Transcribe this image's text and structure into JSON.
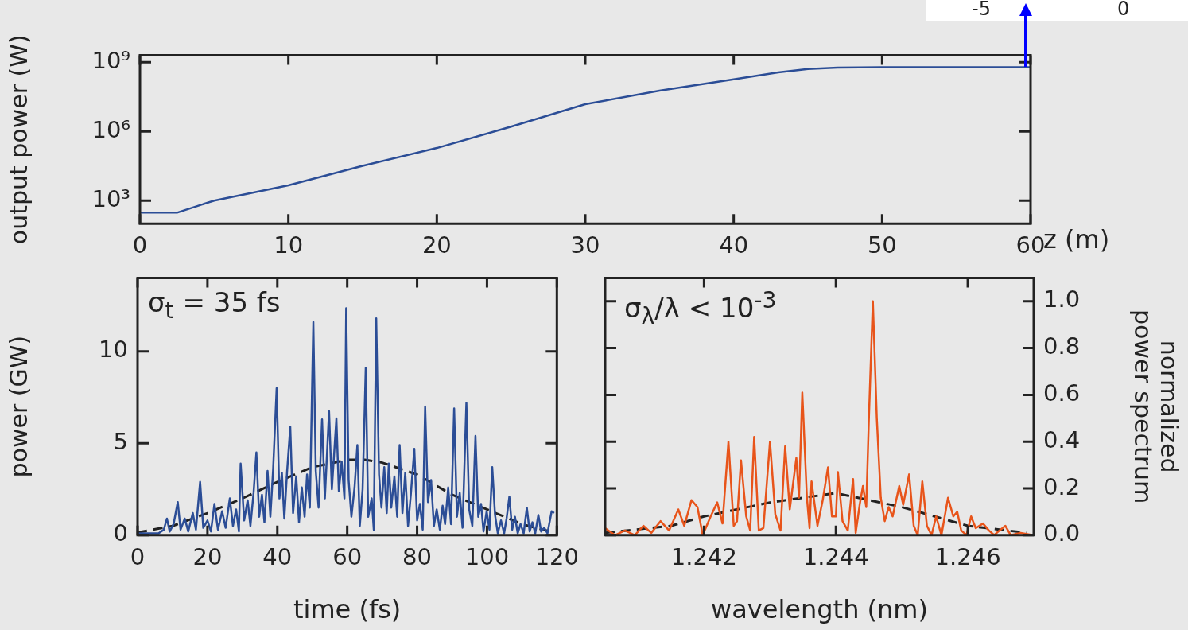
{
  "chart_data": [
    {
      "type": "line",
      "ylabel": "output power (W)",
      "xlabel": "z (m)",
      "log": true,
      "marker": "none",
      "xlim": [
        0,
        60
      ],
      "xticks": [
        0,
        10,
        20,
        30,
        40,
        50,
        60
      ],
      "ylim": [
        100,
        2000000000
      ],
      "yticks": [
        {
          "value": 1000,
          "label": "10³"
        },
        {
          "value": 1000000,
          "label": "10⁶"
        },
        {
          "value": 1000000000,
          "label": "10⁹"
        }
      ],
      "x": [
        0,
        2.5,
        5,
        10,
        15,
        20,
        25,
        30,
        35,
        40,
        43,
        45,
        47,
        50,
        55,
        60
      ],
      "series": [
        {
          "color": "#2b4d96",
          "values": [
            300,
            300,
            1000,
            4600,
            32000,
            190000,
            1600000,
            15000000,
            58000000,
            180000000,
            360000000,
            500000000,
            580000000,
            600000000,
            600000000,
            600000000
          ]
        }
      ],
      "annotations": [
        "-5",
        "0"
      ]
    },
    {
      "type": "line",
      "xlabel": "time (fs)",
      "ylabel": "power (GW)",
      "marker": "none",
      "xlim": [
        0,
        120
      ],
      "xticks": [
        0,
        20,
        40,
        60,
        80,
        100,
        120
      ],
      "ylim": [
        0,
        14
      ],
      "yticks": [
        0,
        5,
        10
      ],
      "annotations": [
        "σ$_{t}$ = 35 fs"
      ],
      "series": [
        {
          "color": "#2b4d96",
          "x": [
            0,
            3,
            6,
            7.5,
            8.4,
            9.2,
            10.3,
            11.5,
            12.3,
            13.5,
            14.5,
            15.8,
            16.7,
            17.9,
            18.8,
            20,
            21,
            22,
            23,
            24.2,
            25.2,
            26.4,
            27.3,
            28.2,
            29,
            29.5,
            30.5,
            31.5,
            32.3,
            33.2,
            34,
            34.8,
            35.6,
            36.3,
            37.2,
            38,
            38.8,
            39.8,
            40.6,
            41.3,
            42,
            42.8,
            43.7,
            44.5,
            45.4,
            46.2,
            47,
            47.8,
            48.5,
            49.3,
            50.3,
            51,
            51.8,
            52.8,
            53.6,
            54.8,
            55.6,
            56.9,
            57.6,
            58.4,
            59.2,
            59.7,
            60.4,
            61.2,
            62.1,
            62.9,
            63.6,
            64.4,
            65.3,
            66,
            67,
            67.6,
            68.3,
            69.1,
            69.8,
            70.6,
            71.3,
            71.9,
            72.6,
            73.5,
            74.3,
            75,
            75.8,
            76.6,
            77.4,
            78.2,
            79.2,
            80,
            80.8,
            81.6,
            82.3,
            83.1,
            84,
            84.8,
            85.6,
            86.5,
            87.3,
            88,
            88.9,
            89.7,
            90.6,
            91.4,
            92.2,
            93,
            94.1,
            94.9,
            95.8,
            96.7,
            97.5,
            98.3,
            99,
            99.9,
            100.7,
            101.5,
            102.3,
            103.1,
            104,
            104.9,
            105.6,
            106.4,
            107.2,
            108,
            108.8,
            109.6,
            110.5,
            111.4,
            112.2,
            113,
            113.8,
            114.7,
            115.5,
            116.4,
            117.3,
            118.5,
            119.2
          ],
          "values": [
            0.1,
            0.1,
            0.1,
            0.3,
            0.9,
            0.2,
            0.6,
            1.8,
            0.3,
            0.9,
            0.2,
            1.2,
            0.3,
            2.9,
            0.4,
            0.8,
            0.2,
            1.7,
            0.3,
            1.3,
            0.4,
            2.0,
            0.5,
            1.4,
            0.2,
            3.9,
            0.8,
            1.9,
            0.5,
            2.3,
            4.5,
            1.0,
            2.2,
            0.7,
            3.5,
            1.0,
            3.6,
            8.0,
            2.0,
            3.4,
            0.9,
            3.5,
            5.9,
            1.2,
            3.2,
            0.7,
            2.6,
            1.0,
            3.3,
            1.5,
            11.6,
            3.5,
            1.5,
            6.3,
            2.0,
            6.75,
            2.5,
            6.35,
            2.4,
            4.0,
            2.0,
            12.35,
            3.0,
            1.0,
            2.6,
            4.9,
            0.5,
            2.5,
            9.1,
            1.0,
            2.0,
            0.3,
            11.8,
            3.3,
            1.5,
            3.7,
            1.2,
            3.9,
            1.5,
            3.2,
            1.0,
            4.9,
            1.2,
            3.4,
            0.5,
            2.2,
            4.7,
            0.8,
            1.7,
            0.3,
            7.0,
            1.8,
            3.0,
            0.5,
            1.4,
            0.3,
            1.6,
            0.6,
            2.6,
            0.6,
            6.9,
            1.0,
            2.3,
            0.4,
            7.2,
            1.4,
            0.5,
            5.4,
            1.0,
            1.7,
            0.2,
            1.3,
            0.3,
            3.7,
            1.1,
            0.1,
            0.8,
            0.1,
            0.9,
            2.1,
            0.3,
            1.0,
            0.1,
            0.6,
            0.1,
            1.5,
            0.2,
            0.7,
            0.1,
            1.1,
            0.2,
            0.4,
            0.1,
            1.3,
            1.2
          ]
        },
        {
          "color": "#222222",
          "line_style": "dashed",
          "x": [
            0,
            10,
            20,
            30,
            40,
            50,
            60,
            65,
            70,
            80,
            90,
            100,
            110,
            118
          ],
          "values": [
            0.15,
            0.5,
            1.2,
            2.0,
            2.9,
            3.7,
            4.1,
            4.1,
            3.95,
            3.3,
            2.2,
            1.4,
            0.6,
            0.2
          ]
        }
      ]
    },
    {
      "type": "line",
      "xlabel": "wavelength (nm)",
      "ylabel": "normalized power spectrum",
      "marker": "none",
      "xlim": [
        1.2405,
        1.247
      ],
      "xticks": [
        1.242,
        1.244,
        1.246
      ],
      "ylim": [
        0,
        1.1
      ],
      "yticks": [
        {
          "value": 0,
          "label": "0.0"
        },
        {
          "value": 0.2,
          "label": "0.2"
        },
        {
          "value": 0.4,
          "label": "0.4"
        },
        {
          "value": 0.6,
          "label": "0.6"
        },
        {
          "value": 0.8,
          "label": "0.8"
        },
        {
          "value": 1,
          "label": "1.0"
        }
      ],
      "annotations": [
        "σ$_{λ}$/λ < 10$^{-3}$"
      ],
      "series": [
        {
          "color": "#e8541a",
          "x": [
            1.2405,
            1.24065,
            1.2408,
            1.24095,
            1.24108,
            1.2412,
            1.24134,
            1.24147,
            1.24161,
            1.2417,
            1.24181,
            1.2419,
            1.24198,
            1.2421,
            1.2422,
            1.24228,
            1.24237,
            1.24245,
            1.2425,
            1.24256,
            1.24264,
            1.2427,
            1.24276,
            1.24283,
            1.2429,
            1.243,
            1.24308,
            1.24316,
            1.24323,
            1.2433,
            1.2434,
            1.24344,
            1.24349,
            1.24356,
            1.2436,
            1.24363,
            1.24372,
            1.2438,
            1.24388,
            1.24394,
            1.244,
            1.24403,
            1.2441,
            1.24418,
            1.24426,
            1.2443,
            1.24436,
            1.24441,
            1.24446,
            1.2445,
            1.24456,
            1.24462,
            1.24468,
            1.24474,
            1.2448,
            1.24486,
            1.24496,
            1.24502,
            1.24511,
            1.24518,
            1.24524,
            1.24531,
            1.24538,
            1.24545,
            1.24552,
            1.2456,
            1.2457,
            1.24578,
            1.24584,
            1.2459,
            1.24598,
            1.24605,
            1.24612,
            1.24623,
            1.24632,
            1.2464,
            1.24648,
            1.24657,
            1.24665,
            1.2468,
            1.24699
          ],
          "values": [
            0.03,
            0.0,
            0.02,
            0.0,
            0.04,
            0.01,
            0.06,
            0.02,
            0.11,
            0.04,
            0.15,
            0.12,
            0.0,
            0.08,
            0.14,
            0.05,
            0.4,
            0.04,
            0.06,
            0.32,
            0.08,
            0.02,
            0.42,
            0.02,
            0.03,
            0.4,
            0.09,
            0.02,
            0.38,
            0.11,
            0.33,
            0.16,
            0.61,
            0.16,
            0.03,
            0.23,
            0.04,
            0.15,
            0.29,
            0.08,
            0.08,
            0.27,
            0.06,
            0.02,
            0.24,
            0.01,
            0.13,
            0.21,
            0.12,
            0.5,
            1.0,
            0.5,
            0.16,
            0.06,
            0.12,
            0.08,
            0.21,
            0.13,
            0.26,
            0.04,
            0.0,
            0.23,
            0.04,
            0.0,
            0.08,
            0.0,
            0.16,
            0.08,
            0.1,
            0.02,
            0.0,
            0.08,
            0.03,
            0.05,
            0.02,
            0.0,
            0.02,
            0.04,
            0.0,
            0.01,
            0.0
          ]
        },
        {
          "color": "#222222",
          "line_style": "dashed",
          "x": [
            1.2405,
            1.2415,
            1.242,
            1.243,
            1.244,
            1.245,
            1.246,
            1.2469
          ],
          "values": [
            0.01,
            0.04,
            0.08,
            0.14,
            0.18,
            0.12,
            0.04,
            0.01
          ]
        }
      ]
    }
  ]
}
